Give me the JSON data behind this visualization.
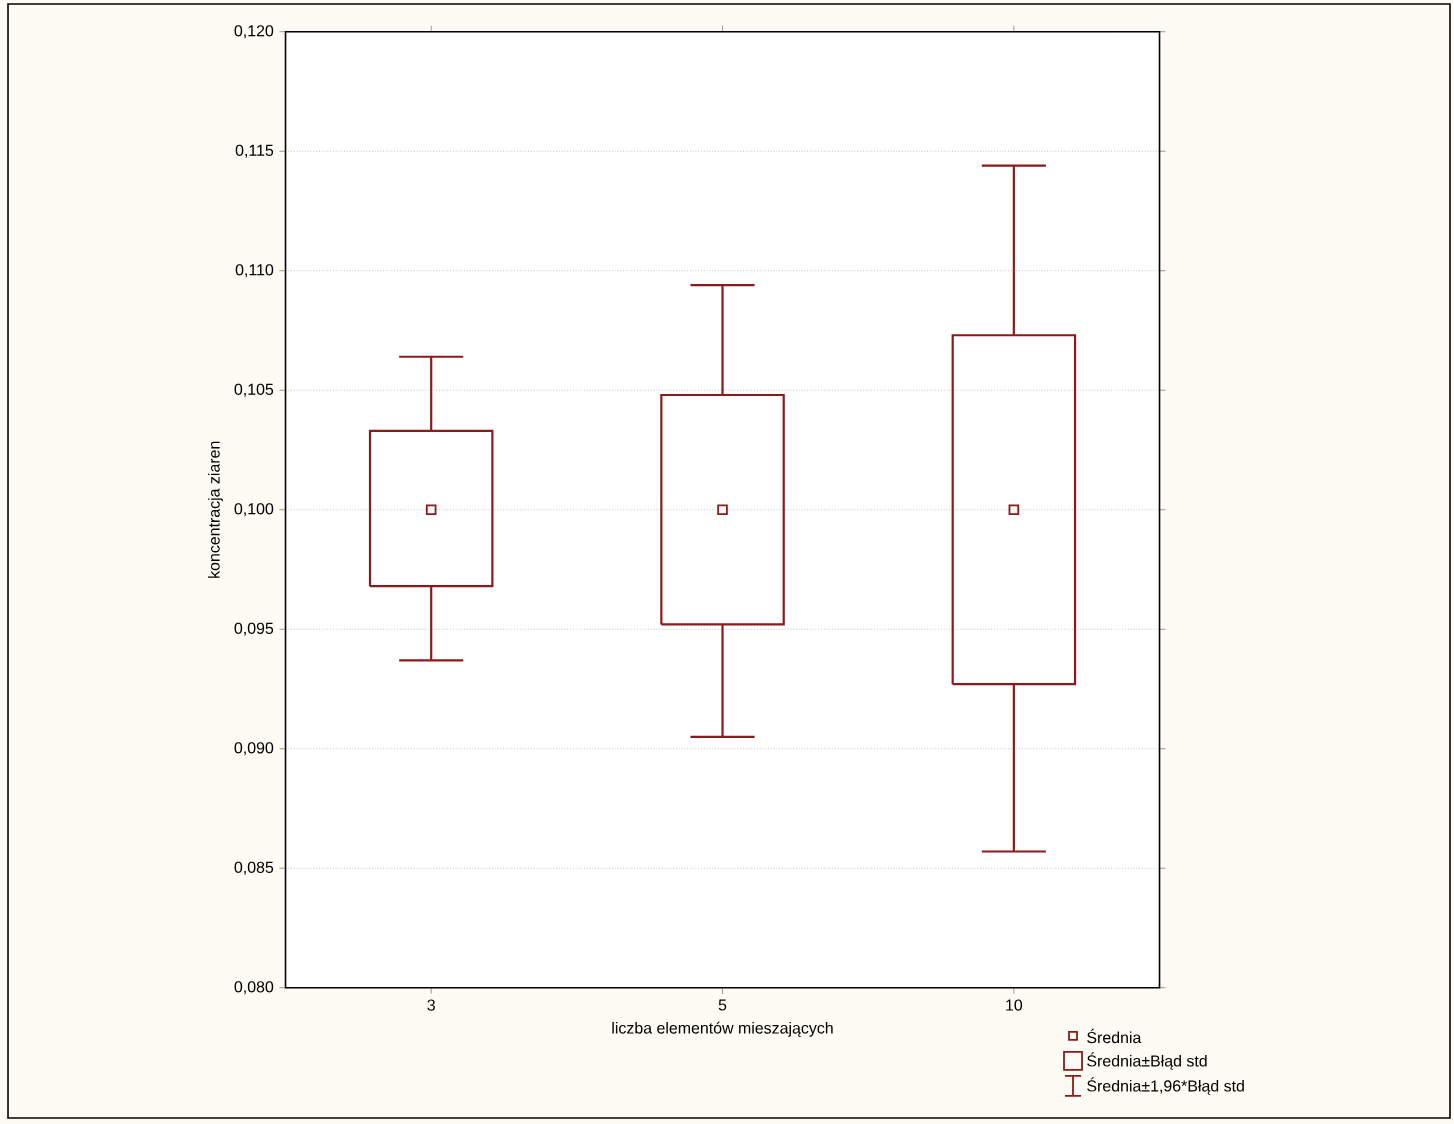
{
  "chart_data": {
    "type": "box",
    "xlabel": "liczba elementów mieszających",
    "ylabel": "koncentracja ziaren",
    "categories": [
      "3",
      "5",
      "10"
    ],
    "boxes": [
      {
        "low": 0.0937,
        "q1": 0.0968,
        "median": 0.1,
        "q3": 0.1033,
        "high": 0.1064
      },
      {
        "low": 0.0905,
        "q1": 0.0952,
        "median": 0.1,
        "q3": 0.1048,
        "high": 0.1094
      },
      {
        "low": 0.0857,
        "q1": 0.0927,
        "median": 0.1,
        "q3": 0.1073,
        "high": 0.1144
      }
    ],
    "color": "#8b1a1a",
    "ylim": [
      0.08,
      0.12
    ],
    "yticks": [
      {
        "value": 0.08,
        "label": "0,080"
      },
      {
        "value": 0.085,
        "label": "0,085"
      },
      {
        "value": 0.09,
        "label": "0,090"
      },
      {
        "value": 0.095,
        "label": "0,095"
      },
      {
        "value": 0.1,
        "label": "0,100"
      },
      {
        "value": 0.105,
        "label": "0,105"
      },
      {
        "value": 0.11,
        "label": "0,110"
      },
      {
        "value": 0.115,
        "label": "0,115"
      },
      {
        "value": 0.12,
        "label": "0,120"
      }
    ],
    "grid": "y",
    "annotations": [
      "Średnia",
      "Średnia±Błąd std",
      "Średnia±1,96*Błąd std"
    ]
  }
}
